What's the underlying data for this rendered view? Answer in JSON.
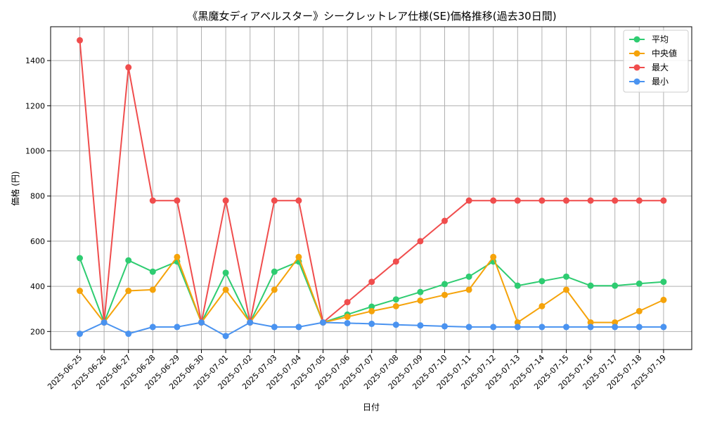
{
  "chart_data": {
    "type": "line",
    "title": "《黒魔女ディアベルスター》シークレットレア仕様(SE)価格推移(過去30日間)",
    "xlabel": "日付",
    "ylabel": "価格 (円)",
    "ylim": [
      120,
      1550
    ],
    "yticks": [
      200,
      400,
      600,
      800,
      1000,
      1200,
      1400
    ],
    "grid": true,
    "legend_position": "top-right",
    "categories": [
      "2025-06-25",
      "2025-06-26",
      "2025-06-27",
      "2025-06-28",
      "2025-06-29",
      "2025-06-30",
      "2025-07-01",
      "2025-07-02",
      "2025-07-03",
      "2025-07-04",
      "2025-07-05",
      "2025-07-06",
      "2025-07-07",
      "2025-07-08",
      "2025-07-09",
      "2025-07-10",
      "2025-07-11",
      "2025-07-12",
      "2025-07-13",
      "2025-07-14",
      "2025-07-15",
      "2025-07-16",
      "2025-07-17",
      "2025-07-18",
      "2025-07-19"
    ],
    "series": [
      {
        "key": "avg",
        "name": "平均",
        "color": "#2ecc71",
        "values": [
          525,
          240,
          515,
          465,
          510,
          240,
          460,
          240,
          465,
          510,
          240,
          275,
          310,
          342,
          375,
          410,
          443,
          510,
          403,
          423,
          443,
          403,
          403,
          412,
          420
        ]
      },
      {
        "key": "median",
        "name": "中央値",
        "color": "#f5a30a",
        "values": [
          380,
          240,
          380,
          385,
          530,
          240,
          385,
          240,
          385,
          530,
          240,
          265,
          290,
          312,
          337,
          362,
          385,
          530,
          240,
          312,
          385,
          240,
          240,
          290,
          340
        ]
      },
      {
        "key": "max",
        "name": "最大",
        "color": "#f04d4d",
        "values": [
          1490,
          240,
          1370,
          780,
          780,
          240,
          780,
          240,
          780,
          780,
          240,
          330,
          420,
          510,
          600,
          690,
          780,
          780,
          780,
          780,
          780,
          780,
          780,
          780,
          780
        ]
      },
      {
        "key": "min",
        "name": "最小",
        "color": "#4a93f0",
        "values": [
          190,
          240,
          190,
          220,
          220,
          240,
          180,
          240,
          220,
          220,
          240,
          237,
          234,
          230,
          227,
          223,
          220,
          220,
          220,
          220,
          220,
          220,
          220,
          220,
          220
        ]
      }
    ]
  }
}
